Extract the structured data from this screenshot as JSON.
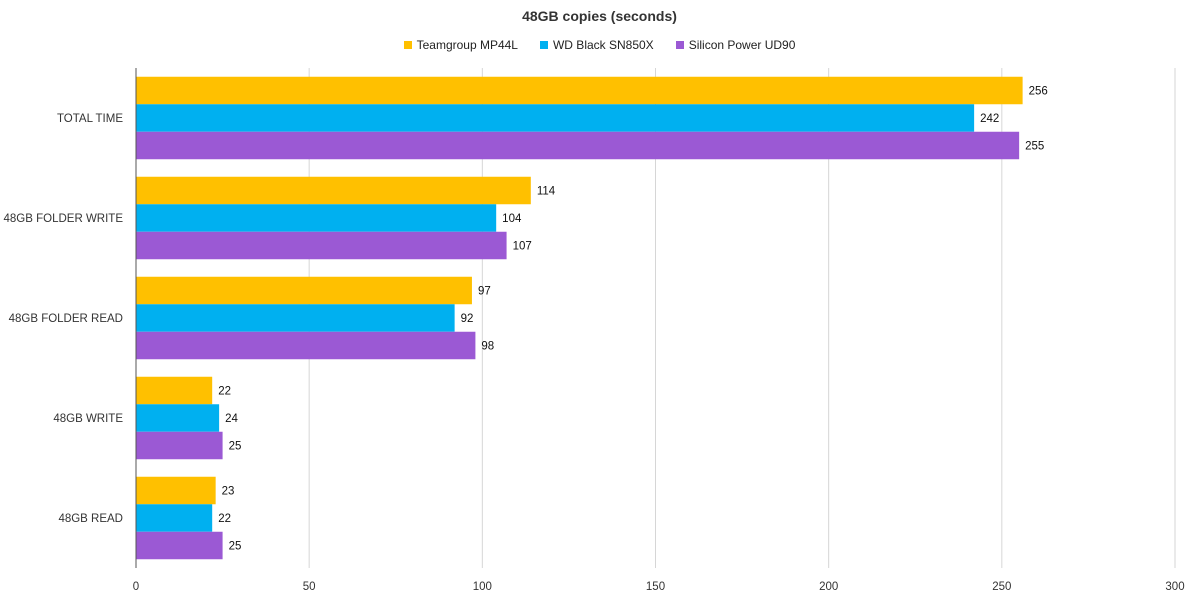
{
  "chart_data": {
    "type": "bar",
    "orientation": "horizontal",
    "title": "48GB copies (seconds)",
    "categories": [
      "TOTAL TIME",
      "48GB FOLDER WRITE",
      "48GB FOLDER READ",
      "48GB WRITE",
      "48GB READ"
    ],
    "series": [
      {
        "name": "Teamgroup MP44L",
        "color": "#FFC000",
        "values": [
          256,
          114,
          97,
          22,
          23
        ]
      },
      {
        "name": "WD Black SN850X",
        "color": "#00B0F0",
        "values": [
          242,
          104,
          92,
          24,
          22
        ]
      },
      {
        "name": "Silicon Power UD90",
        "color": "#9B59D4",
        "values": [
          255,
          107,
          98,
          25,
          25
        ]
      }
    ],
    "xlim": [
      0,
      300
    ],
    "xticks": [
      "0",
      "50",
      "100",
      "150",
      "200",
      "250",
      "300"
    ],
    "grid": true,
    "legend_position": "top"
  }
}
